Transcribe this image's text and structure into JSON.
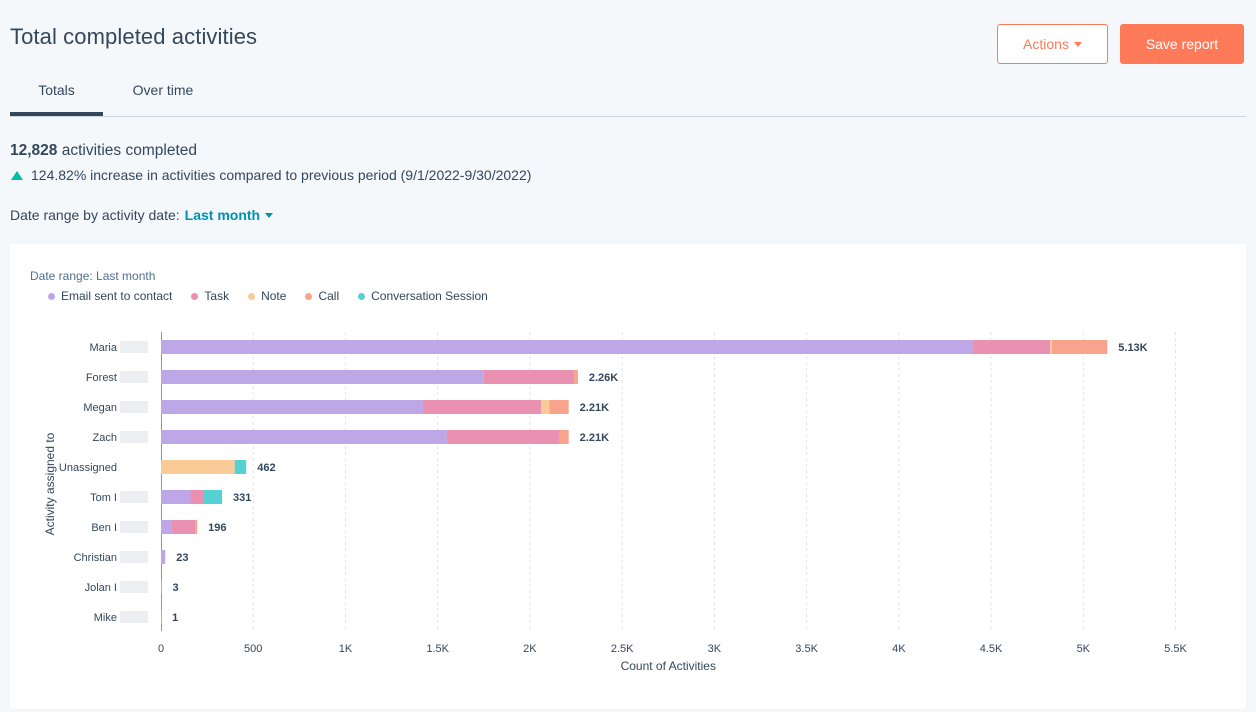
{
  "page": {
    "title": "Total completed activities",
    "actions_label": "Actions",
    "save_label": "Save report"
  },
  "tabs": [
    {
      "label": "Totals",
      "active": true
    },
    {
      "label": "Over time",
      "active": false
    }
  ],
  "summary": {
    "count": "12,828",
    "count_suffix": "activities completed",
    "increase_text": "124.82% increase in activities compared to previous period (9/1/2022-9/30/2022)",
    "date_range_label": "Date range by activity date:",
    "date_range_value": "Last month"
  },
  "colors": {
    "accent": "#ff7a59",
    "link": "#0091ae",
    "up": "#00bda5"
  },
  "chart_data": {
    "type": "bar",
    "orientation": "horizontal",
    "stacked": true,
    "date_range_label": "Date range:  Last month",
    "xlabel": "Count of Activities",
    "ylabel": "Activity assigned to",
    "xlim": [
      0,
      5500
    ],
    "xticks": [
      0,
      500,
      1000,
      1500,
      2000,
      2500,
      3000,
      3500,
      4000,
      4500,
      5000,
      5500
    ],
    "xtick_labels": [
      "0",
      "500",
      "1K",
      "1.5K",
      "2K",
      "2.5K",
      "3K",
      "3.5K",
      "4K",
      "4.5K",
      "5K",
      "5.5K"
    ],
    "categories": [
      "Maria",
      "Forest",
      "Megan",
      "Zach",
      "Unassigned",
      "Tom I",
      "Ben I",
      "Christian",
      "Jolan I",
      "Mike"
    ],
    "totals_labels": [
      "5.13K",
      "2.26K",
      "2.21K",
      "2.21K",
      "462",
      "331",
      "196",
      "23",
      "3",
      "1"
    ],
    "series": [
      {
        "name": "Email sent to contact",
        "color": "#bda7e6",
        "values": [
          4400,
          1750,
          1420,
          1550,
          0,
          160,
          55,
          23,
          3,
          1
        ]
      },
      {
        "name": "Task",
        "color": "#ea90b1",
        "values": [
          420,
          490,
          640,
          610,
          0,
          70,
          130,
          0,
          0,
          0
        ]
      },
      {
        "name": "Note",
        "color": "#f8cb97",
        "values": [
          10,
          0,
          45,
          0,
          400,
          0,
          0,
          0,
          0,
          0
        ]
      },
      {
        "name": "Call",
        "color": "#f8a38b",
        "values": [
          300,
          20,
          105,
          50,
          0,
          0,
          11,
          0,
          0,
          0
        ]
      },
      {
        "name": "Conversation Session",
        "color": "#55d1d4",
        "values": [
          0,
          0,
          0,
          0,
          62,
          101,
          0,
          0,
          0,
          0
        ]
      }
    ]
  }
}
